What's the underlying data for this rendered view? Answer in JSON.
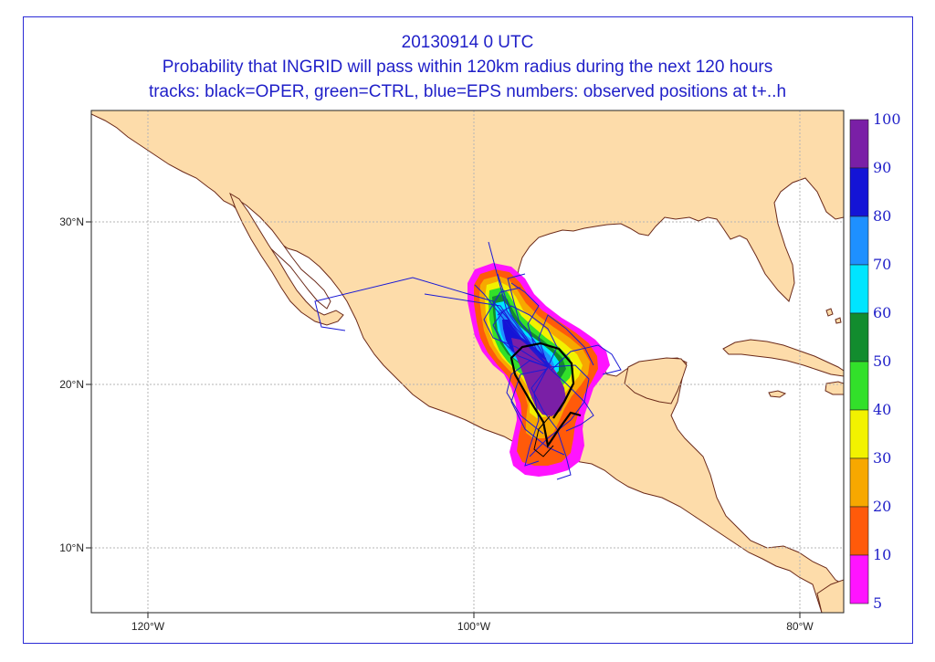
{
  "title": {
    "line1": "20130914 0 UTC",
    "line2": "Probability that INGRID will pass within 120km radius during the next 120 hours",
    "line3": "tracks: black=OPER, green=CTRL, blue=EPS numbers: observed positions at t+..h"
  },
  "axes": {
    "lat_labels": [
      "30°N",
      "20°N",
      "10°N"
    ],
    "lon_labels": [
      "120°W",
      "100°W",
      "80°W"
    ]
  },
  "colorbar": {
    "labels": [
      "100",
      "90",
      "80",
      "70",
      "60",
      "50",
      "40",
      "30",
      "20",
      "10",
      "5"
    ],
    "colors": [
      "#7a1fa6",
      "#1414d6",
      "#1e90ff",
      "#00e5ff",
      "#128c2e",
      "#32e02a",
      "#f2f200",
      "#f7a800",
      "#ff5a0a",
      "#ff14ff"
    ]
  },
  "colors": {
    "land": "#fddcaa",
    "sea": "#ffffff",
    "coast": "#6b2a1a",
    "grid": "#b5b5b5",
    "oper_track": "#000000",
    "eps_track": "#1a1ad6"
  }
}
